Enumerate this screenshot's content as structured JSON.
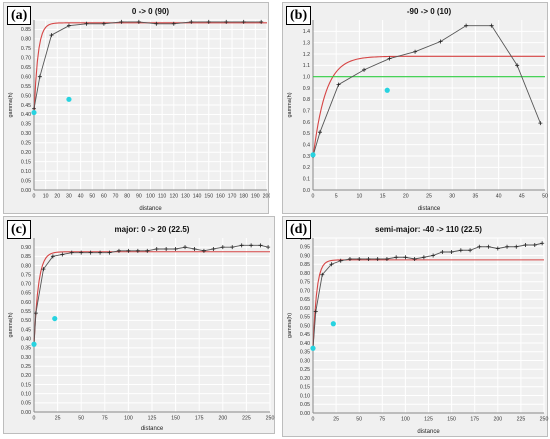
{
  "panels": [
    {
      "label": "(a)"
    },
    {
      "label": "(b)"
    },
    {
      "label": "(c)"
    },
    {
      "label": "(d)"
    }
  ],
  "colors": {
    "empirical": "#555555",
    "model": "#d64545",
    "sill": "#2ecc40",
    "marker": "#27d3e0",
    "grid": "#ffffff",
    "plot_bg": "#f0f0f0"
  },
  "chart_data": [
    {
      "type": "line",
      "title": "0 -> 0 (90)",
      "xlabel": "distance",
      "ylabel": "gamma(h)",
      "xlim": [
        0,
        200
      ],
      "ylim": [
        0,
        0.9
      ],
      "xticks": [
        0,
        10,
        20,
        30,
        40,
        50,
        60,
        70,
        80,
        90,
        100,
        110,
        120,
        130,
        140,
        150,
        160,
        170,
        180,
        190,
        200
      ],
      "yticks": [
        0,
        0.05,
        0.1,
        0.15,
        0.2,
        0.25,
        0.3,
        0.35,
        0.4,
        0.45,
        0.5,
        0.55,
        0.6,
        0.65,
        0.7,
        0.75,
        0.8,
        0.85,
        0.9
      ],
      "ytick_labels": [
        "0.00",
        "0.05",
        "0.10",
        "0.15",
        "0.20",
        "0.25",
        "0.30",
        "0.35",
        "0.40",
        "0.45",
        "0.50",
        "0.55",
        "0.60",
        "0.65",
        "0.70",
        "0.75",
        "0.80",
        "0.85",
        "0.90"
      ],
      "grid": true,
      "series": [
        {
          "role": "empirical",
          "x": [
            0,
            5,
            15,
            30,
            45,
            60,
            75,
            90,
            105,
            120,
            135,
            150,
            165,
            180,
            195
          ],
          "y": [
            0.43,
            0.6,
            0.82,
            0.87,
            0.88,
            0.88,
            0.89,
            0.89,
            0.88,
            0.88,
            0.89,
            0.89,
            0.89,
            0.89,
            0.89
          ]
        },
        {
          "role": "model",
          "nugget": 0.4,
          "sill": 0.885,
          "range": 10
        },
        {
          "role": "marker",
          "x": [
            0,
            30
          ],
          "y": [
            0.41,
            0.48
          ]
        }
      ]
    },
    {
      "type": "line",
      "title": "-90 -> 0 (10)",
      "xlabel": "distance",
      "ylabel": "gamma(h)",
      "xlim": [
        0,
        50
      ],
      "ylim": [
        0,
        1.5
      ],
      "xticks": [
        0,
        5,
        10,
        15,
        20,
        25,
        30,
        35,
        40,
        45,
        50
      ],
      "yticks": [
        0,
        0.1,
        0.2,
        0.3,
        0.4,
        0.5,
        0.6,
        0.7,
        0.8,
        0.9,
        1.0,
        1.1,
        1.2,
        1.3,
        1.4
      ],
      "ytick_labels": [
        "0.0",
        "0.1",
        "0.2",
        "0.3",
        "0.4",
        "0.5",
        "0.6",
        "0.7",
        "0.8",
        "0.9",
        "1.0",
        "1.1",
        "1.2",
        "1.3",
        "1.4"
      ],
      "grid": true,
      "series": [
        {
          "role": "empirical",
          "x": [
            0,
            1.5,
            5.5,
            11,
            16.5,
            22,
            27.5,
            33,
            38.5,
            44,
            49
          ],
          "y": [
            0.3,
            0.51,
            0.93,
            1.06,
            1.16,
            1.22,
            1.31,
            1.45,
            1.45,
            1.1,
            0.59
          ]
        },
        {
          "role": "model",
          "nugget": 0.28,
          "sill": 1.18,
          "range": 8
        },
        {
          "role": "sill",
          "y": 1.0
        },
        {
          "role": "marker",
          "x": [
            0,
            16
          ],
          "y": [
            0.31,
            0.88
          ]
        }
      ]
    },
    {
      "type": "line",
      "title": "major: 0 -> 20 (22.5)",
      "xlabel": "distance",
      "ylabel": "gamma(h)",
      "xlim": [
        0,
        250
      ],
      "ylim": [
        0,
        0.95
      ],
      "xticks": [
        0,
        25,
        50,
        75,
        100,
        125,
        150,
        175,
        200,
        225,
        250
      ],
      "yticks": [
        0,
        0.05,
        0.1,
        0.15,
        0.2,
        0.25,
        0.3,
        0.35,
        0.4,
        0.45,
        0.5,
        0.55,
        0.6,
        0.65,
        0.7,
        0.75,
        0.8,
        0.85,
        0.9
      ],
      "ytick_labels": [
        "0.00",
        "0.05",
        "0.10",
        "0.15",
        "0.20",
        "0.25",
        "0.30",
        "0.35",
        "0.40",
        "0.45",
        "0.50",
        "0.55",
        "0.60",
        "0.65",
        "0.70",
        "0.75",
        "0.80",
        "0.85",
        "0.90"
      ],
      "grid": true,
      "series": [
        {
          "role": "empirical",
          "x": [
            0,
            2,
            10,
            20,
            30,
            40,
            50,
            60,
            70,
            80,
            90,
            100,
            110,
            120,
            130,
            140,
            150,
            160,
            170,
            180,
            190,
            200,
            210,
            220,
            230,
            240,
            248
          ],
          "y": [
            0.37,
            0.54,
            0.78,
            0.85,
            0.86,
            0.87,
            0.87,
            0.87,
            0.87,
            0.87,
            0.88,
            0.88,
            0.88,
            0.88,
            0.89,
            0.89,
            0.89,
            0.9,
            0.89,
            0.88,
            0.89,
            0.9,
            0.9,
            0.91,
            0.91,
            0.91,
            0.9
          ]
        },
        {
          "role": "model",
          "nugget": 0.37,
          "sill": 0.875,
          "range": 14
        },
        {
          "role": "marker",
          "x": [
            0,
            22
          ],
          "y": [
            0.37,
            0.51
          ]
        }
      ]
    },
    {
      "type": "line",
      "title": "semi-major: -40 -> 110 (22.5)",
      "xlabel": "distance",
      "ylabel": "gamma(h)",
      "xlim": [
        0,
        250
      ],
      "ylim": [
        0,
        1.0
      ],
      "xticks": [
        0,
        25,
        50,
        75,
        100,
        125,
        150,
        175,
        200,
        225,
        250
      ],
      "yticks": [
        0,
        0.05,
        0.1,
        0.15,
        0.2,
        0.25,
        0.3,
        0.35,
        0.4,
        0.45,
        0.5,
        0.55,
        0.6,
        0.65,
        0.7,
        0.75,
        0.8,
        0.85,
        0.9,
        0.95,
        1.0
      ],
      "ytick_labels": [
        "0.00",
        "0.05",
        "0.10",
        "0.15",
        "0.20",
        "0.25",
        "0.30",
        "0.35",
        "0.40",
        "0.45",
        "0.50",
        "0.55",
        "0.60",
        "0.65",
        "0.70",
        "0.75",
        "0.80",
        "0.85",
        "0.90",
        "0.95",
        "1.00"
      ],
      "grid": true,
      "series": [
        {
          "role": "empirical",
          "x": [
            0,
            3,
            10,
            20,
            30,
            40,
            50,
            60,
            70,
            80,
            90,
            100,
            110,
            120,
            130,
            140,
            150,
            160,
            170,
            180,
            190,
            200,
            210,
            220,
            230,
            240,
            248
          ],
          "y": [
            0.37,
            0.58,
            0.79,
            0.85,
            0.87,
            0.88,
            0.88,
            0.88,
            0.88,
            0.88,
            0.89,
            0.89,
            0.88,
            0.89,
            0.9,
            0.92,
            0.92,
            0.93,
            0.93,
            0.95,
            0.95,
            0.94,
            0.95,
            0.95,
            0.96,
            0.96,
            0.97
          ]
        },
        {
          "role": "model",
          "nugget": 0.37,
          "sill": 0.875,
          "range": 12
        },
        {
          "role": "marker",
          "x": [
            0,
            22
          ],
          "y": [
            0.37,
            0.51
          ]
        }
      ]
    }
  ]
}
